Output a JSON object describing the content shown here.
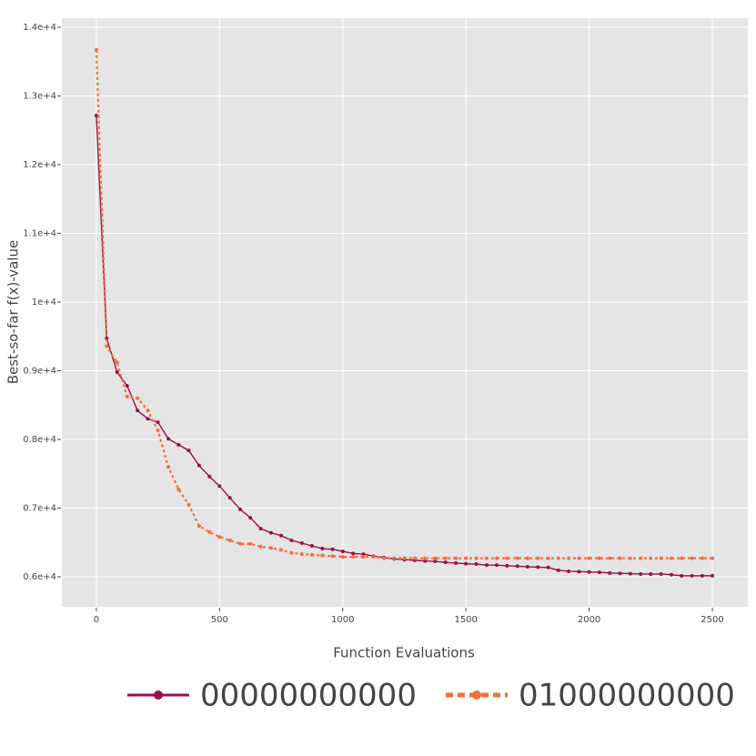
{
  "chart_data": {
    "type": "line",
    "x_label": "Function Evaluations",
    "y_label": "Best-so-far f(x)-value",
    "x": [
      0,
      42,
      84,
      125,
      167,
      209,
      250,
      292,
      334,
      375,
      417,
      459,
      500,
      542,
      584,
      625,
      667,
      709,
      750,
      792,
      834,
      875,
      917,
      959,
      1000,
      1042,
      1084,
      1125,
      1167,
      1209,
      1250,
      1292,
      1334,
      1375,
      1417,
      1459,
      1500,
      1542,
      1584,
      1625,
      1667,
      1709,
      1750,
      1792,
      1834,
      1875,
      1917,
      1959,
      2000,
      2042,
      2084,
      2125,
      2167,
      2209,
      2250,
      2292,
      2334,
      2375,
      2417,
      2459,
      2500
    ],
    "series": [
      {
        "name": "00000000000",
        "color": "#9b0f4b",
        "dash": "solid",
        "values": [
          12715,
          9470,
          8980,
          8780,
          8420,
          8300,
          8250,
          8010,
          7920,
          7840,
          7620,
          7460,
          7320,
          7150,
          6980,
          6860,
          6700,
          6640,
          6600,
          6530,
          6490,
          6450,
          6410,
          6400,
          6370,
          6340,
          6330,
          6300,
          6280,
          6260,
          6250,
          6240,
          6230,
          6225,
          6210,
          6200,
          6190,
          6185,
          6170,
          6170,
          6160,
          6155,
          6145,
          6140,
          6135,
          6095,
          6080,
          6075,
          6070,
          6065,
          6055,
          6050,
          6045,
          6040,
          6040,
          6040,
          6030,
          6015,
          6015,
          6015,
          6015
        ]
      },
      {
        "name": "01000000000",
        "color": "#f36f3c",
        "dash": "dot",
        "values": [
          13670,
          9360,
          9120,
          8620,
          8600,
          8420,
          8130,
          7600,
          7270,
          7050,
          6740,
          6650,
          6580,
          6530,
          6480,
          6480,
          6440,
          6420,
          6390,
          6350,
          6330,
          6320,
          6310,
          6300,
          6290,
          6290,
          6290,
          6290,
          6270,
          6270,
          6270,
          6270,
          6270,
          6270,
          6270,
          6270,
          6270,
          6270,
          6270,
          6270,
          6270,
          6270,
          6270,
          6270,
          6270,
          6270,
          6270,
          6270,
          6270,
          6270,
          6270,
          6270,
          6270,
          6270,
          6270,
          6270,
          6270,
          6270,
          6270,
          6270,
          6270
        ]
      }
    ],
    "xlim": [
      -140,
      2644
    ],
    "ylim": [
      5563,
      14132
    ],
    "xticks": [
      0,
      500,
      1000,
      1500,
      2000,
      2500
    ],
    "yticks": [
      {
        "value": 6000,
        "label": "0.6e+4"
      },
      {
        "value": 7000,
        "label": "0.7e+4"
      },
      {
        "value": 8000,
        "label": "0.8e+4"
      },
      {
        "value": 9000,
        "label": "0.9e+4"
      },
      {
        "value": 10000,
        "label": "1e+4"
      },
      {
        "value": 11000,
        "label": "1.1e+4"
      },
      {
        "value": 12000,
        "label": "1.2e+4"
      },
      {
        "value": 13000,
        "label": "1.3e+4"
      },
      {
        "value": 14000,
        "label": "1.4e+4"
      }
    ],
    "grid": true,
    "legend": "bottom"
  }
}
